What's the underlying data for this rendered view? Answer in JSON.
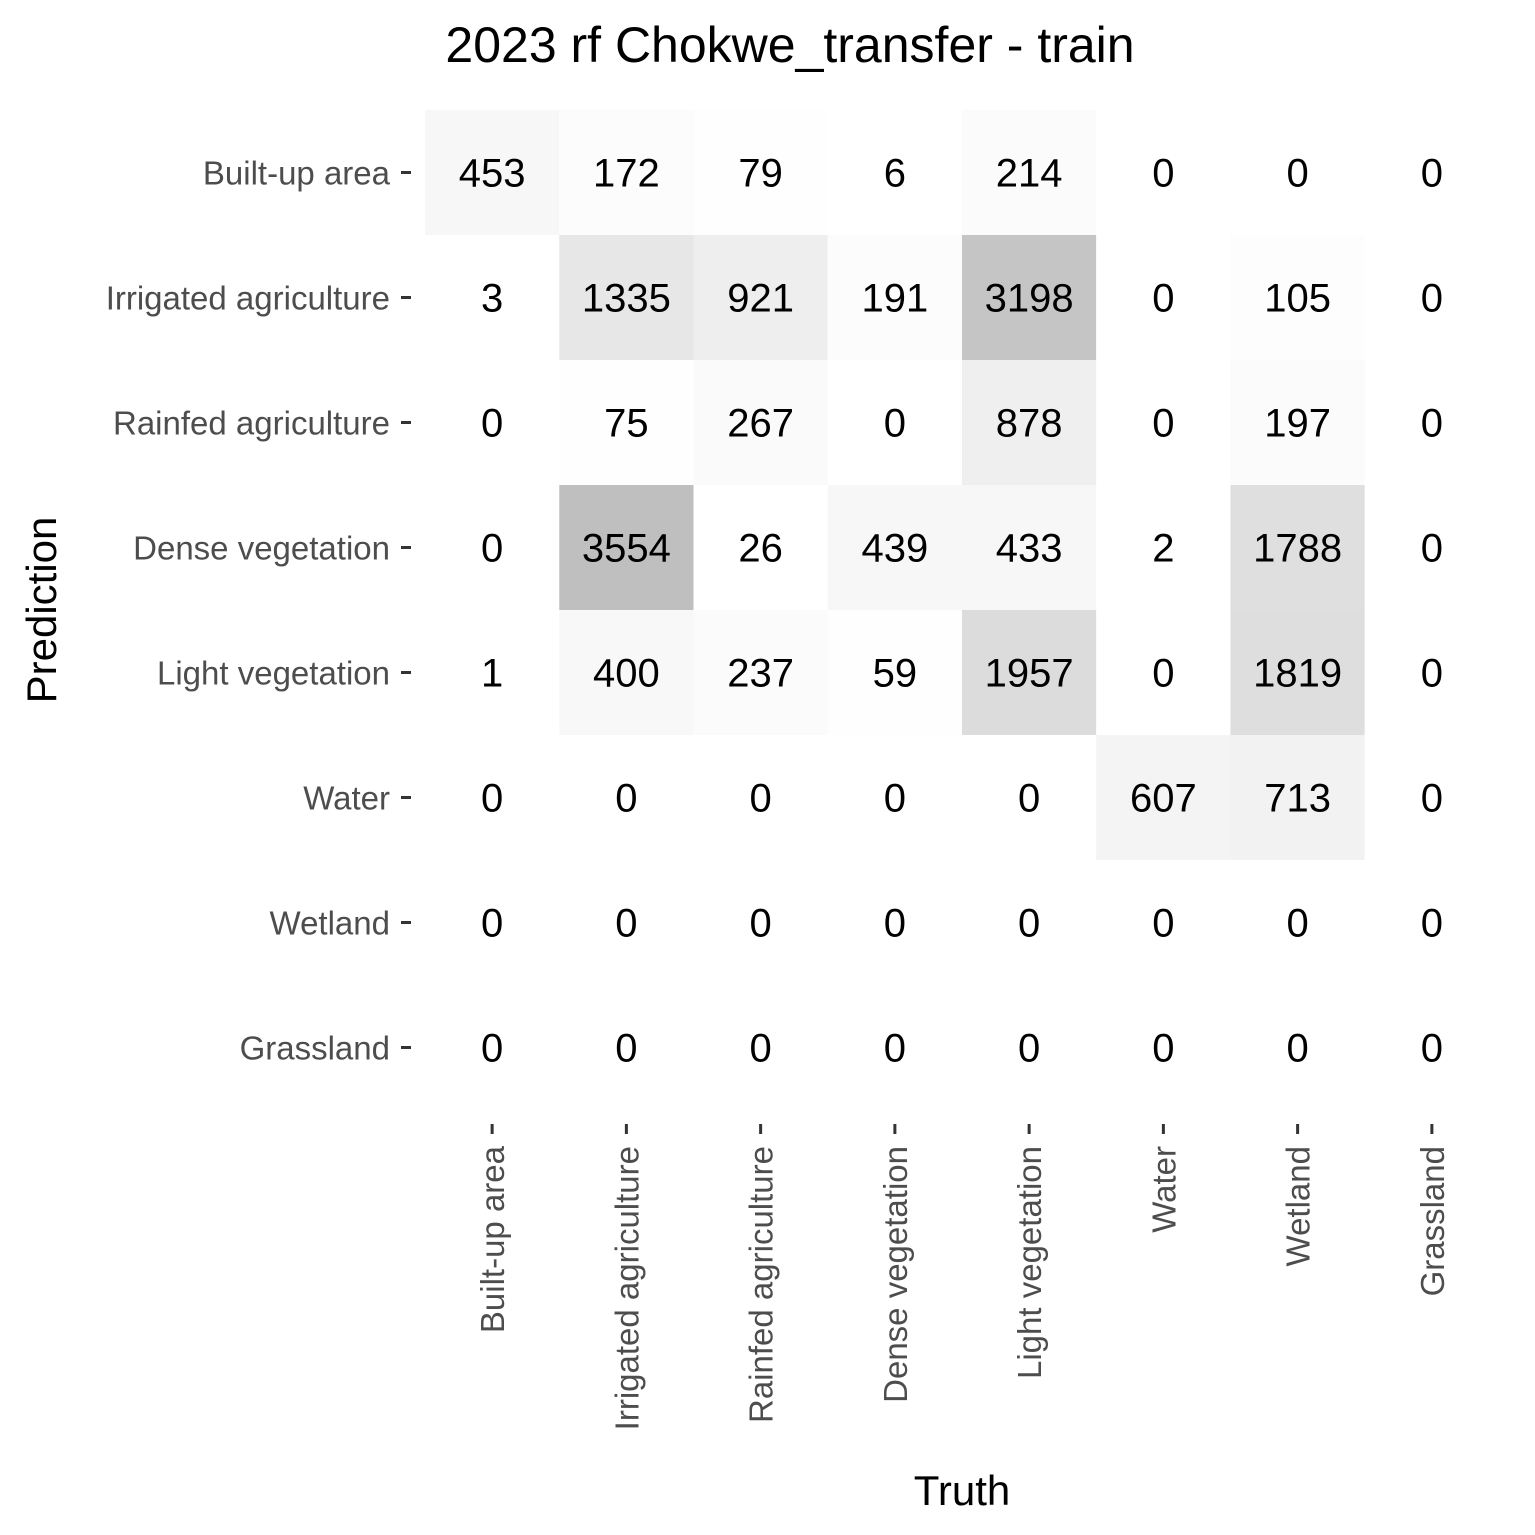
{
  "chart_data": {
    "type": "heatmap",
    "title": "2023 rf Chokwe_transfer - train",
    "xlabel": "Truth",
    "ylabel": "Prediction",
    "x_categories": [
      "Built-up area",
      "Irrigated agriculture",
      "Rainfed agriculture",
      "Dense vegetation",
      "Light vegetation",
      "Water",
      "Wetland",
      "Grassland"
    ],
    "y_categories": [
      "Built-up area",
      "Irrigated agriculture",
      "Rainfed agriculture",
      "Dense vegetation",
      "Light vegetation",
      "Water",
      "Wetland",
      "Grassland"
    ],
    "values": [
      [
        453,
        172,
        79,
        6,
        214,
        0,
        0,
        0
      ],
      [
        3,
        1335,
        921,
        191,
        3198,
        0,
        105,
        0
      ],
      [
        0,
        75,
        267,
        0,
        878,
        0,
        197,
        0
      ],
      [
        0,
        3554,
        26,
        439,
        433,
        2,
        1788,
        0
      ],
      [
        1,
        400,
        237,
        59,
        1957,
        0,
        1819,
        0
      ],
      [
        0,
        0,
        0,
        0,
        0,
        607,
        713,
        0
      ],
      [
        0,
        0,
        0,
        0,
        0,
        0,
        0,
        0
      ],
      [
        0,
        0,
        0,
        0,
        0,
        0,
        0,
        0
      ]
    ],
    "color_scale": {
      "low": "#ffffff",
      "high": "#bfbfbf"
    },
    "legend": "none",
    "grid": false
  }
}
